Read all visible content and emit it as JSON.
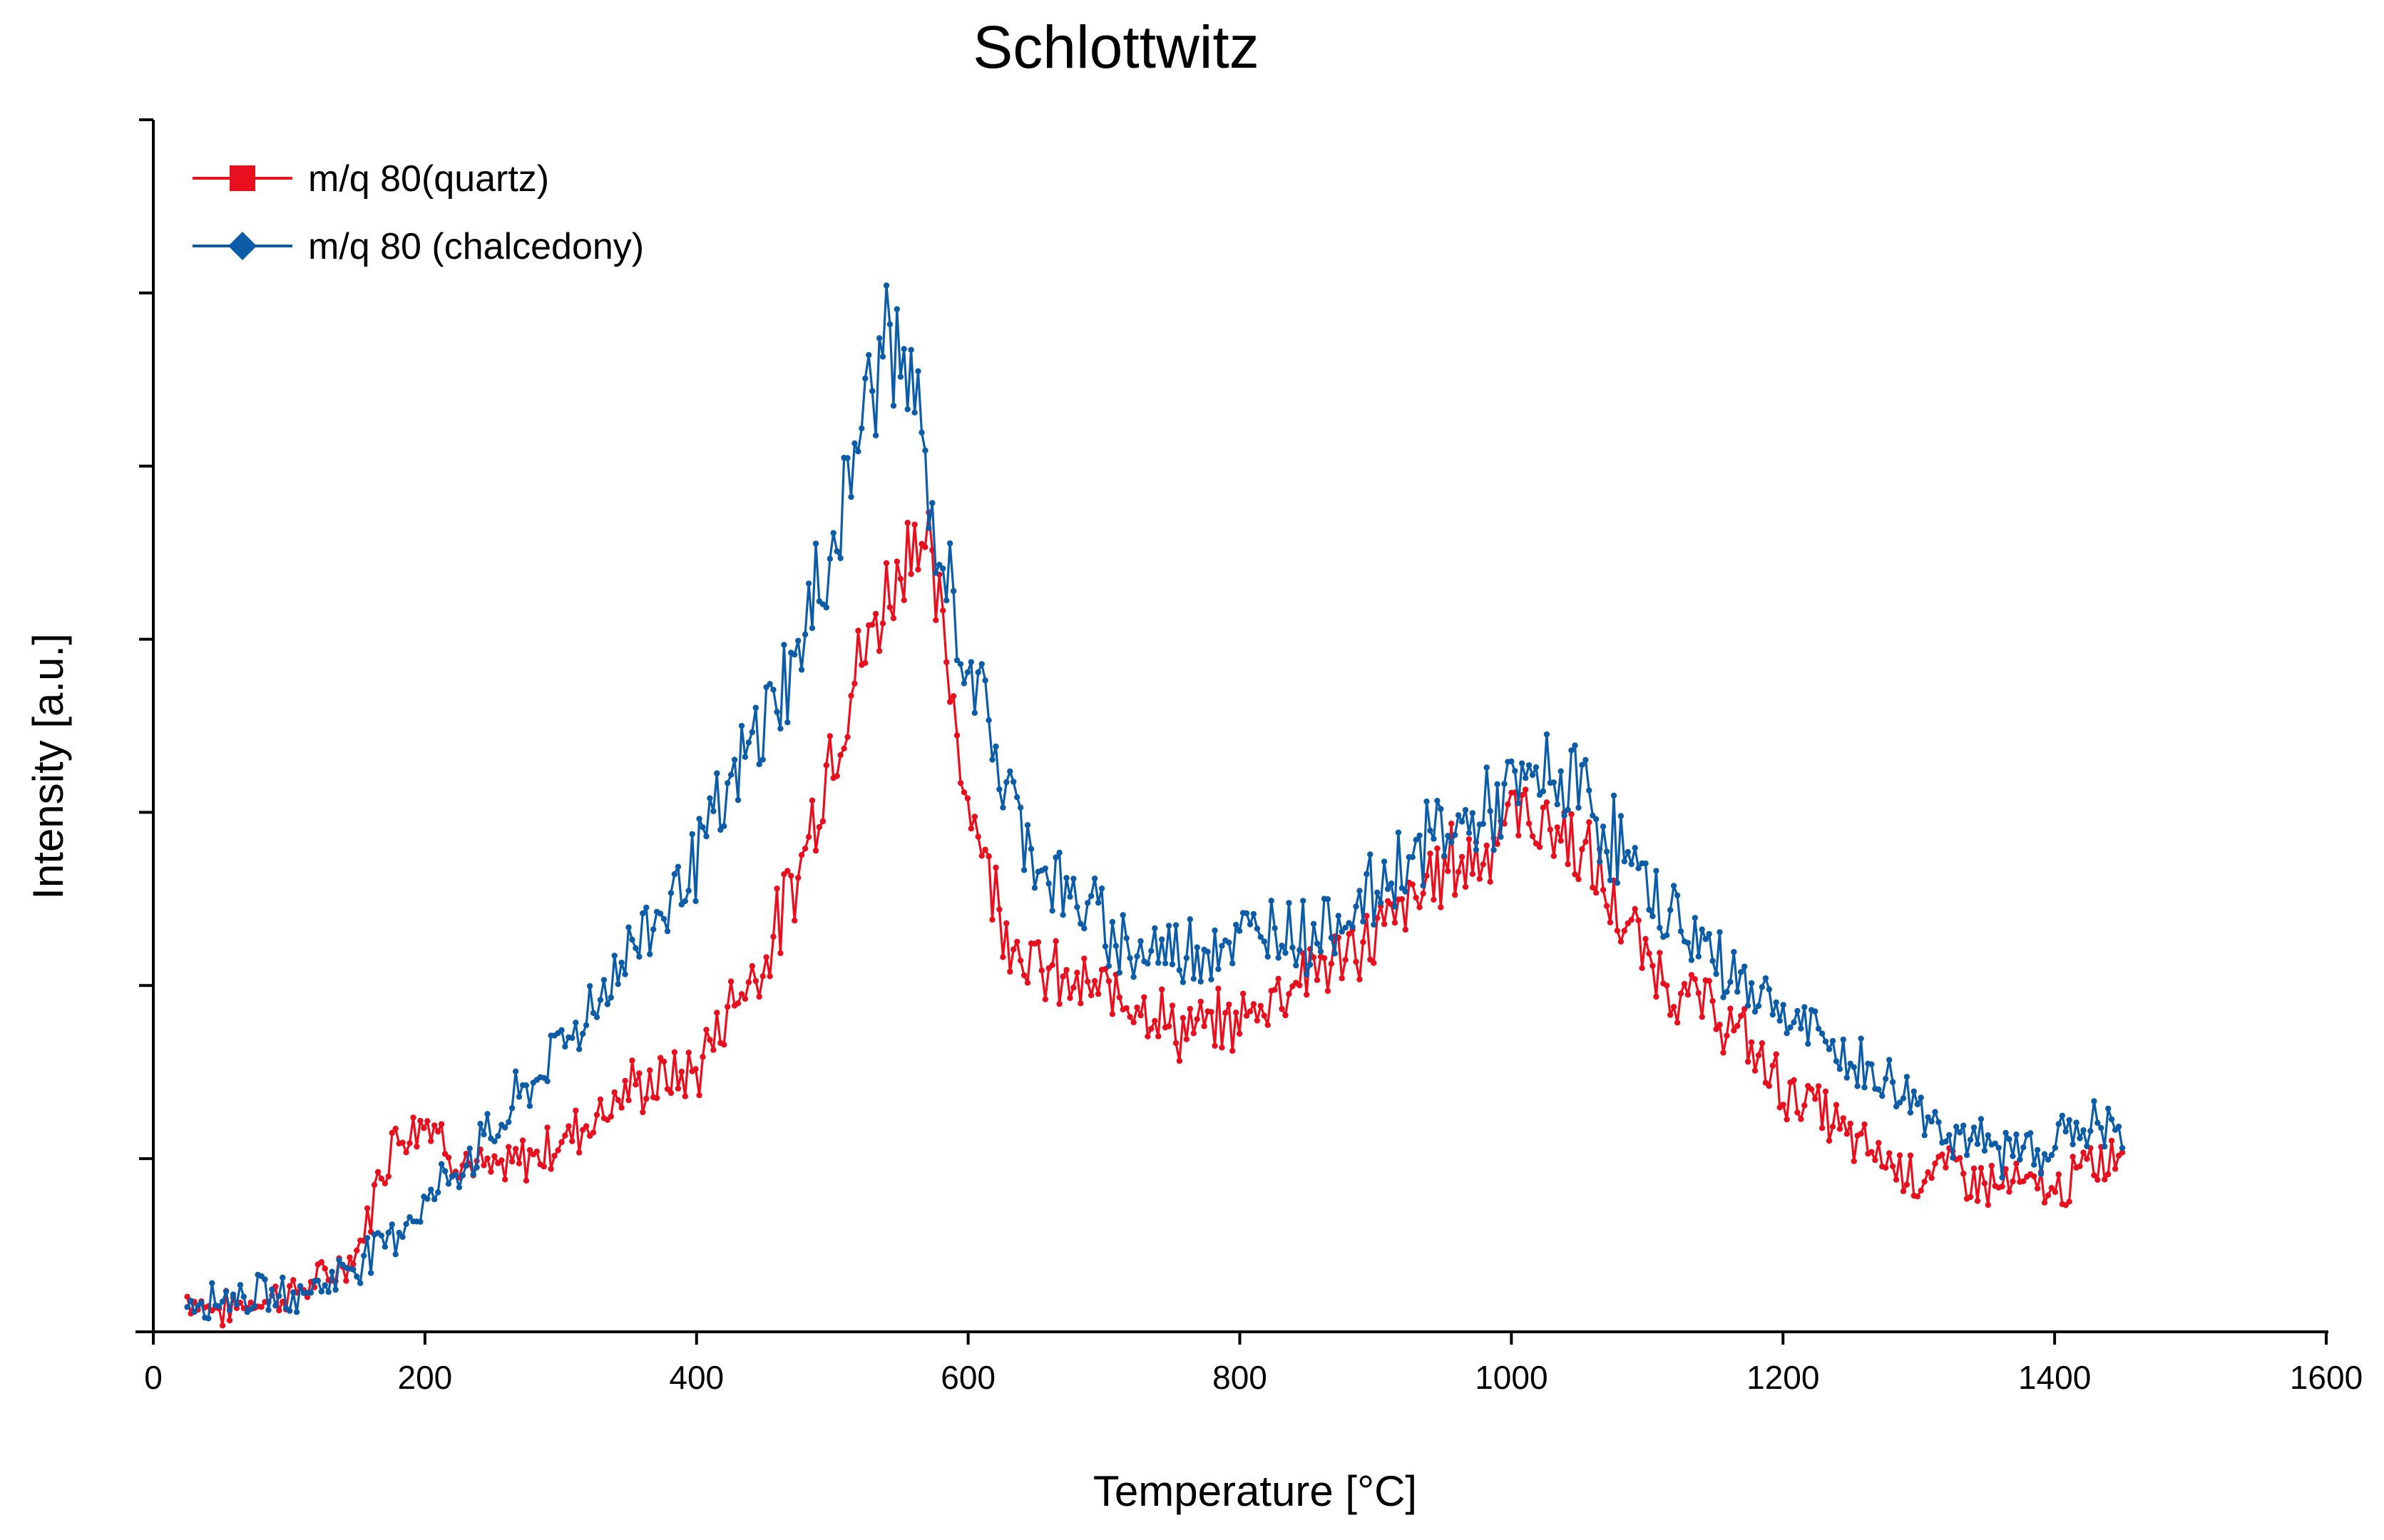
{
  "chart_data": {
    "type": "line",
    "title": "Schlottwitz",
    "xlabel": "Temperature [°C]",
    "ylabel": "Intensity [a.u.]",
    "xlim": [
      0,
      1600
    ],
    "ylim": [
      0,
      7
    ],
    "xticks": [
      0,
      200,
      400,
      600,
      800,
      1000,
      1200,
      1400,
      1600
    ],
    "yticks": [
      0,
      1,
      2,
      3,
      4,
      5,
      6,
      7
    ],
    "ytick_labels_shown": false,
    "grid": false,
    "legend_position": "top-left",
    "series": [
      {
        "name": "m/q 80(quartz)",
        "color": "#e8101e",
        "marker": "square",
        "x": [
          25,
          50,
          75,
          100,
          125,
          150,
          175,
          200,
          225,
          250,
          275,
          300,
          325,
          350,
          375,
          400,
          425,
          450,
          475,
          500,
          525,
          550,
          560,
          575,
          600,
          625,
          650,
          675,
          700,
          725,
          750,
          775,
          800,
          825,
          850,
          875,
          900,
          925,
          950,
          975,
          1000,
          1025,
          1050,
          1075,
          1100,
          1125,
          1150,
          1175,
          1200,
          1225,
          1250,
          1275,
          1300,
          1325,
          1350,
          1375,
          1400,
          1425,
          1450
        ],
        "y": [
          0.2,
          0.12,
          0.18,
          0.22,
          0.3,
          0.45,
          1.1,
          1.25,
          1.0,
          0.9,
          1.0,
          1.1,
          1.25,
          1.4,
          1.45,
          1.5,
          1.9,
          2.15,
          2.65,
          3.4,
          3.95,
          4.45,
          4.7,
          4.3,
          3.1,
          2.4,
          2.1,
          2.0,
          1.95,
          1.95,
          1.75,
          1.75,
          1.8,
          1.95,
          2.1,
          2.15,
          2.3,
          2.45,
          2.7,
          2.75,
          3.0,
          2.95,
          2.8,
          2.45,
          2.15,
          1.95,
          1.85,
          1.65,
          1.4,
          1.3,
          1.1,
          1.0,
          0.9,
          0.95,
          0.85,
          0.85,
          0.8,
          0.95,
          1.05
        ]
      },
      {
        "name": "m/q 80 (chalcedony)",
        "color": "#0c5ca8",
        "marker": "diamond",
        "x": [
          25,
          50,
          75,
          100,
          125,
          150,
          175,
          200,
          225,
          250,
          275,
          300,
          325,
          350,
          375,
          400,
          425,
          450,
          475,
          500,
          525,
          540,
          560,
          575,
          600,
          625,
          650,
          675,
          700,
          725,
          750,
          775,
          800,
          825,
          850,
          875,
          900,
          925,
          950,
          975,
          1000,
          1025,
          1050,
          1075,
          1100,
          1125,
          1150,
          1175,
          1200,
          1225,
          1250,
          1275,
          1300,
          1325,
          1350,
          1375,
          1400,
          1425,
          1450
        ],
        "y": [
          0.18,
          0.2,
          0.22,
          0.2,
          0.28,
          0.4,
          0.55,
          0.75,
          0.95,
          1.15,
          1.4,
          1.65,
          1.9,
          2.2,
          2.45,
          2.75,
          3.1,
          3.55,
          3.9,
          4.55,
          5.35,
          5.8,
          5.4,
          4.55,
          3.9,
          3.2,
          2.75,
          2.5,
          2.35,
          2.2,
          2.2,
          2.25,
          2.25,
          2.35,
          2.3,
          2.4,
          2.55,
          2.75,
          2.9,
          2.95,
          3.1,
          3.2,
          3.15,
          2.85,
          2.55,
          2.35,
          2.15,
          2.0,
          1.85,
          1.7,
          1.55,
          1.45,
          1.3,
          1.15,
          1.05,
          1.05,
          1.1,
          1.2,
          1.15
        ]
      }
    ]
  }
}
